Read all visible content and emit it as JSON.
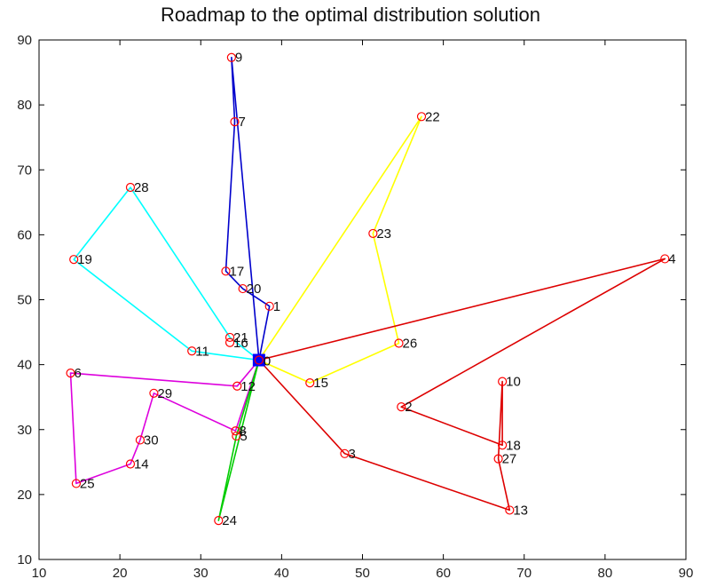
{
  "chart_data": {
    "type": "line",
    "title": "Roadmap to the optimal distribution solution",
    "xlabel": "",
    "ylabel": "",
    "xlim": [
      10,
      90
    ],
    "ylim": [
      10,
      90
    ],
    "xticks": [
      10,
      20,
      30,
      40,
      50,
      60,
      70,
      80,
      90
    ],
    "yticks": [
      10,
      20,
      30,
      40,
      50,
      60,
      70,
      80,
      90
    ],
    "grid": false,
    "depot": {
      "id": 0,
      "label": "0",
      "x": 37.2,
      "y": 40.7,
      "color": "#0000ff"
    },
    "points": [
      {
        "id": 1,
        "label": "1",
        "x": 38.5,
        "y": 49.0
      },
      {
        "id": 2,
        "label": "2",
        "x": 54.8,
        "y": 33.5
      },
      {
        "id": 3,
        "label": "3",
        "x": 47.8,
        "y": 26.3
      },
      {
        "id": 4,
        "label": "4",
        "x": 87.4,
        "y": 56.3
      },
      {
        "id": 5,
        "label": "5",
        "x": 34.4,
        "y": 29.0
      },
      {
        "id": 6,
        "label": "6",
        "x": 13.9,
        "y": 38.7
      },
      {
        "id": 7,
        "label": "7",
        "x": 34.2,
        "y": 77.4
      },
      {
        "id": 8,
        "label": "8",
        "x": 34.3,
        "y": 29.8
      },
      {
        "id": 9,
        "label": "9",
        "x": 33.8,
        "y": 87.3
      },
      {
        "id": 10,
        "label": "10",
        "x": 67.3,
        "y": 37.4
      },
      {
        "id": 11,
        "label": "11",
        "x": 28.9,
        "y": 42.1
      },
      {
        "id": 12,
        "label": "12",
        "x": 34.5,
        "y": 36.7
      },
      {
        "id": 13,
        "label": "13",
        "x": 68.2,
        "y": 17.6
      },
      {
        "id": 14,
        "label": "14",
        "x": 21.3,
        "y": 24.7
      },
      {
        "id": 15,
        "label": "15",
        "x": 43.5,
        "y": 37.2
      },
      {
        "id": 16,
        "label": "16",
        "x": 33.6,
        "y": 43.4
      },
      {
        "id": 17,
        "label": "17",
        "x": 33.1,
        "y": 54.4
      },
      {
        "id": 18,
        "label": "18",
        "x": 67.3,
        "y": 27.6
      },
      {
        "id": 19,
        "label": "19",
        "x": 14.3,
        "y": 56.2
      },
      {
        "id": 20,
        "label": "20",
        "x": 35.2,
        "y": 51.7
      },
      {
        "id": 21,
        "label": "21",
        "x": 33.6,
        "y": 44.2
      },
      {
        "id": 22,
        "label": "22",
        "x": 57.3,
        "y": 78.2
      },
      {
        "id": 23,
        "label": "23",
        "x": 51.3,
        "y": 60.2
      },
      {
        "id": 24,
        "label": "24",
        "x": 32.2,
        "y": 16.0
      },
      {
        "id": 25,
        "label": "25",
        "x": 14.6,
        "y": 21.7
      },
      {
        "id": 26,
        "label": "26",
        "x": 54.5,
        "y": 43.3
      },
      {
        "id": 27,
        "label": "27",
        "x": 66.8,
        "y": 25.5
      },
      {
        "id": 28,
        "label": "28",
        "x": 21.3,
        "y": 67.3
      },
      {
        "id": 29,
        "label": "29",
        "x": 24.2,
        "y": 35.6
      },
      {
        "id": 30,
        "label": "30",
        "x": 22.5,
        "y": 28.4
      }
    ],
    "series": [
      {
        "color": "#0000cc",
        "route": [
          0,
          9,
          7,
          17,
          20,
          1,
          0
        ]
      },
      {
        "color": "#ffff00",
        "route": [
          0,
          22,
          23,
          26,
          15,
          0
        ]
      },
      {
        "color": "#00ffff",
        "route": [
          0,
          11,
          19,
          28,
          21,
          0
        ]
      },
      {
        "color": "#dd00dd",
        "route": [
          0,
          12,
          6,
          25,
          14,
          30,
          29,
          8,
          0
        ]
      },
      {
        "color": "#00cc00",
        "route": [
          0,
          24,
          5,
          0
        ]
      },
      {
        "color": "#dd0000",
        "route": [
          0,
          4,
          2,
          18,
          10,
          27,
          13,
          3,
          0
        ]
      }
    ],
    "marker_color": "#ff0000"
  }
}
